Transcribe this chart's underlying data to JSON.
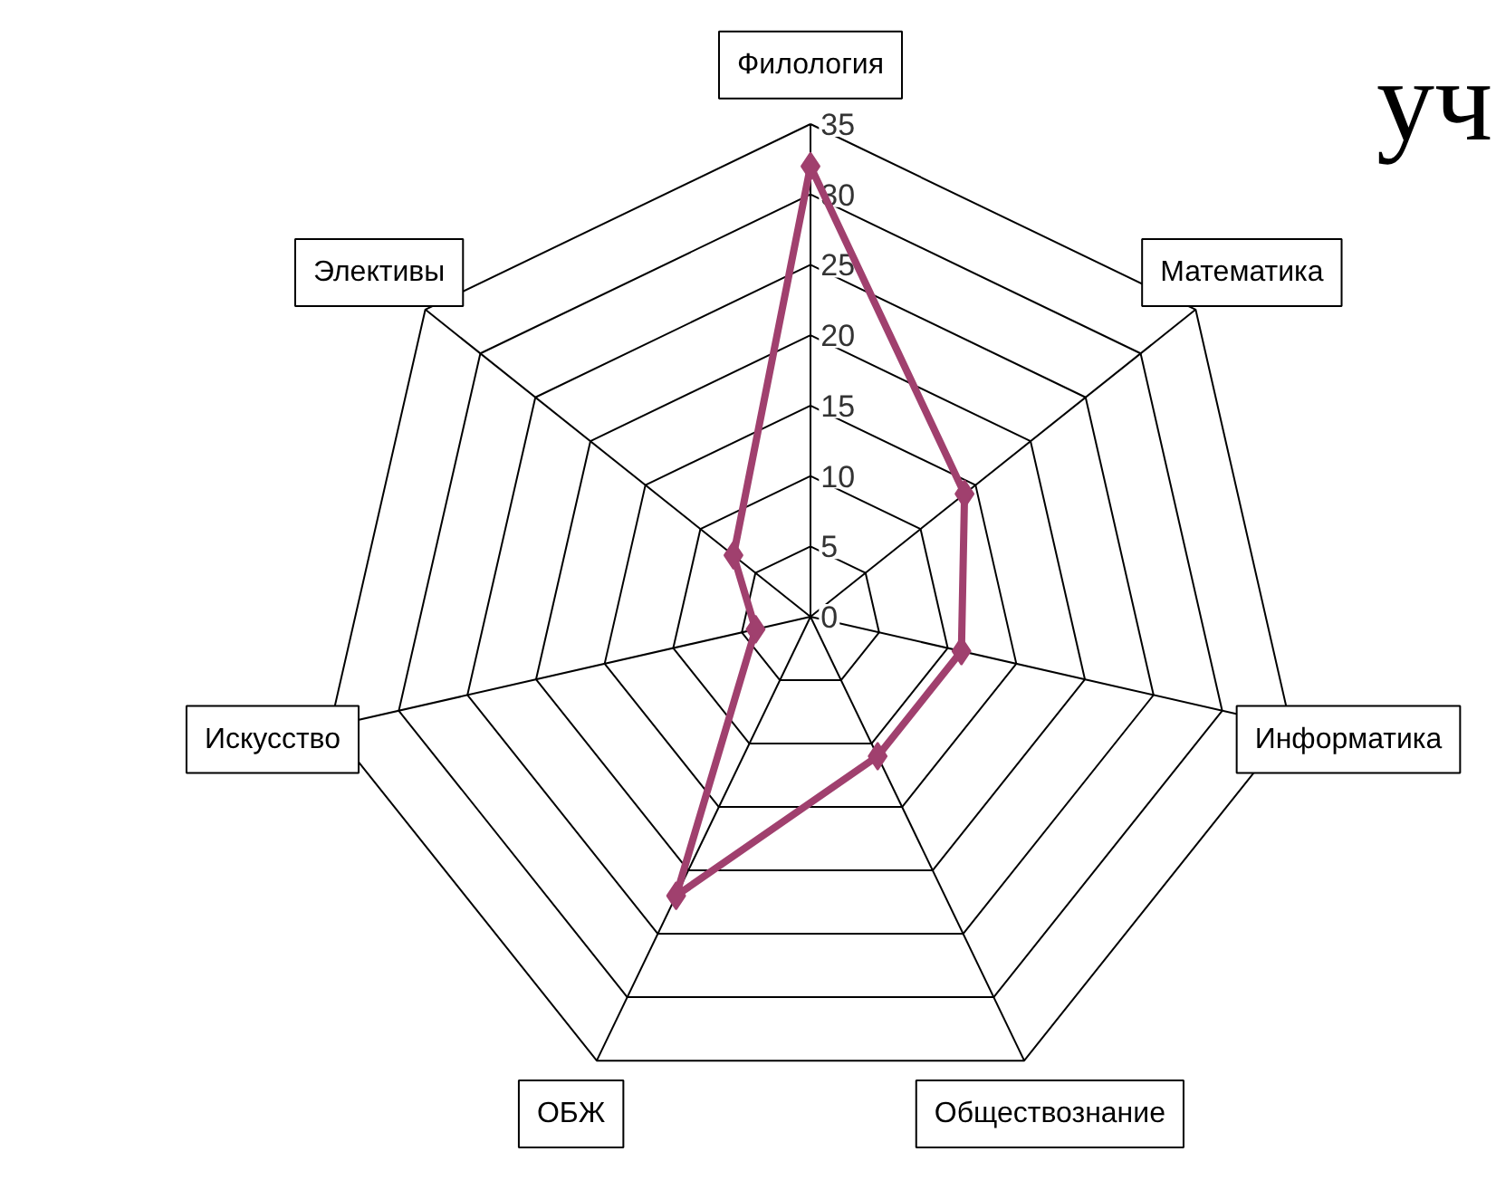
{
  "chart_data": {
    "type": "radar",
    "categories": [
      "Филология",
      "Математика",
      "Информатика",
      "Обществознание",
      "ОБЖ",
      "Искусство",
      "Элективы"
    ],
    "series": [
      {
        "color": "#a0406e",
        "values": [
          32,
          14,
          11,
          11,
          22,
          4,
          7
        ]
      }
    ],
    "ylim": [
      0,
      35
    ],
    "yticks": [
      0,
      5,
      10,
      15,
      20,
      25,
      30,
      35
    ],
    "grid": true,
    "marker": "diamond",
    "line_style": "solid",
    "annotations": [
      "уч"
    ]
  }
}
